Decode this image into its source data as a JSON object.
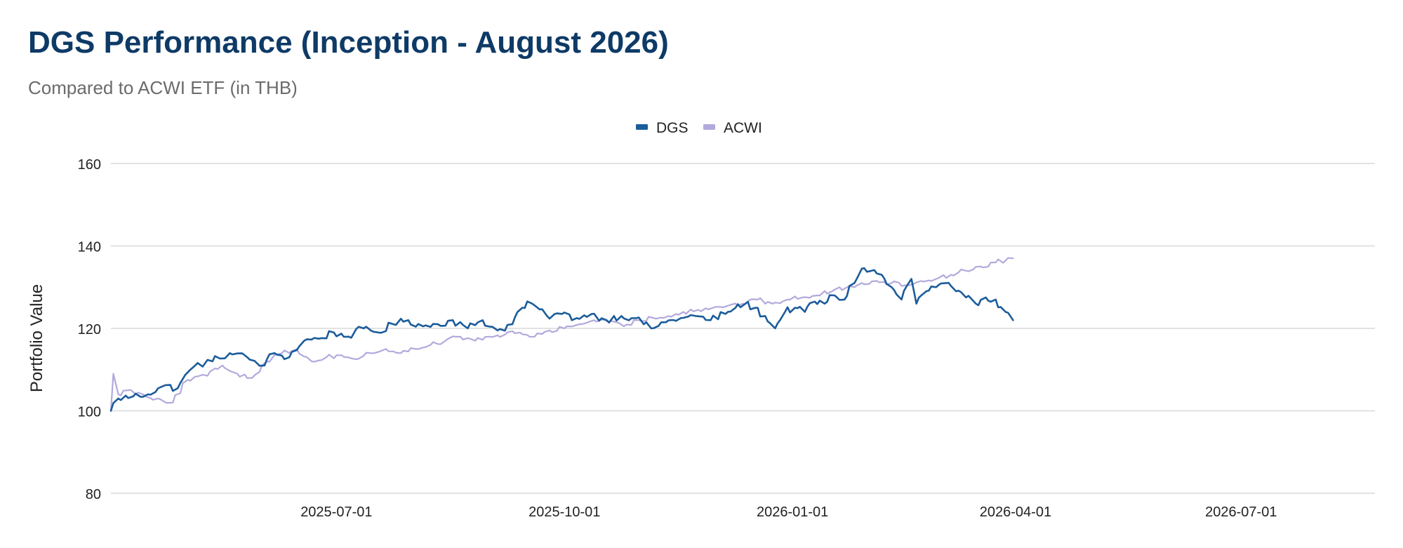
{
  "header": {
    "title": "DGS Performance (Inception - August 2026)",
    "subtitle": "Compared to ACWI ETF (in THB)"
  },
  "colors": {
    "title": "#0e3a66",
    "subtitle": "#6b6b6b",
    "grid": "#d9d9d9",
    "dgs": "#1b5c9b",
    "acwi": "#b3a9dc"
  },
  "chart_data": {
    "type": "line",
    "ylabel": "Portfolio Value",
    "xlabel": "",
    "ylim": [
      80,
      160
    ],
    "yticks": [
      80,
      100,
      120,
      140,
      160
    ],
    "xlim": [
      "2025-04-01",
      "2026-08-24"
    ],
    "xticks": [
      "2025-07-01",
      "2025-10-01",
      "2026-01-01",
      "2026-04-01",
      "2026-07-01"
    ],
    "grid": true,
    "legend_position": "top-center",
    "series": [
      {
        "name": "DGS",
        "color": "#1b5c9b",
        "points": [
          [
            "2025-04-01",
            100
          ],
          [
            "2025-04-04",
            103
          ],
          [
            "2025-04-10",
            103.5
          ],
          [
            "2025-04-16",
            104
          ],
          [
            "2025-04-22",
            106
          ],
          [
            "2025-04-28",
            105.5
          ],
          [
            "2025-05-05",
            111
          ],
          [
            "2025-05-12",
            112
          ],
          [
            "2025-05-19",
            114
          ],
          [
            "2025-05-26",
            113
          ],
          [
            "2025-06-02",
            111
          ],
          [
            "2025-06-06",
            114
          ],
          [
            "2025-06-12",
            113
          ],
          [
            "2025-06-18",
            117
          ],
          [
            "2025-06-24",
            117.5
          ],
          [
            "2025-06-30",
            119
          ],
          [
            "2025-07-06",
            118
          ],
          [
            "2025-07-12",
            120
          ],
          [
            "2025-07-18",
            119
          ],
          [
            "2025-07-24",
            121
          ],
          [
            "2025-07-30",
            122
          ],
          [
            "2025-08-05",
            120.5
          ],
          [
            "2025-08-11",
            121
          ],
          [
            "2025-08-17",
            122
          ],
          [
            "2025-08-23",
            120
          ],
          [
            "2025-08-29",
            122
          ],
          [
            "2025-09-04",
            119.5
          ],
          [
            "2025-09-10",
            121
          ],
          [
            "2025-09-14",
            125
          ],
          [
            "2025-09-18",
            126
          ],
          [
            "2025-09-24",
            123
          ],
          [
            "2025-09-30",
            123.5
          ],
          [
            "2025-10-06",
            122.5
          ],
          [
            "2025-10-12",
            123.5
          ],
          [
            "2025-10-18",
            122
          ],
          [
            "2025-10-24",
            123
          ],
          [
            "2025-10-30",
            122.5
          ],
          [
            "2025-11-05",
            120
          ],
          [
            "2025-11-11",
            121.5
          ],
          [
            "2025-11-17",
            122.5
          ],
          [
            "2025-11-23",
            123
          ],
          [
            "2025-11-29",
            122
          ],
          [
            "2025-12-05",
            123.5
          ],
          [
            "2025-12-09",
            125
          ],
          [
            "2025-12-13",
            126
          ],
          [
            "2025-12-17",
            125
          ],
          [
            "2025-12-21",
            123
          ],
          [
            "2025-12-25",
            120
          ],
          [
            "2025-12-29",
            124
          ],
          [
            "2026-01-02",
            125
          ],
          [
            "2026-01-06",
            124
          ],
          [
            "2026-01-10",
            126.5
          ],
          [
            "2026-01-14",
            126
          ],
          [
            "2026-01-18",
            128
          ],
          [
            "2026-01-22",
            127
          ],
          [
            "2026-01-26",
            131
          ],
          [
            "2026-01-29",
            134.5
          ],
          [
            "2026-02-02",
            134
          ],
          [
            "2026-02-06",
            133
          ],
          [
            "2026-02-10",
            130
          ],
          [
            "2026-02-14",
            127
          ],
          [
            "2026-02-18",
            132
          ],
          [
            "2026-02-20",
            126
          ],
          [
            "2026-02-24",
            129
          ],
          [
            "2026-02-28",
            130
          ],
          [
            "2026-03-04",
            131
          ],
          [
            "2026-03-08",
            129
          ],
          [
            "2026-03-12",
            127.5
          ],
          [
            "2026-03-16",
            126
          ],
          [
            "2026-03-20",
            127.5
          ],
          [
            "2026-03-24",
            127
          ],
          [
            "2026-03-28",
            124
          ],
          [
            "2026-03-31",
            122
          ]
        ]
      },
      {
        "name": "ACWI",
        "color": "#b3a9dc",
        "points": [
          [
            "2025-04-01",
            100
          ],
          [
            "2025-04-02",
            109
          ],
          [
            "2025-04-04",
            104
          ],
          [
            "2025-04-08",
            105
          ],
          [
            "2025-04-14",
            104
          ],
          [
            "2025-04-20",
            103
          ],
          [
            "2025-04-26",
            102
          ],
          [
            "2025-05-02",
            107.5
          ],
          [
            "2025-05-10",
            108.5
          ],
          [
            "2025-05-16",
            111
          ],
          [
            "2025-05-22",
            109
          ],
          [
            "2025-05-28",
            108
          ],
          [
            "2025-06-03",
            112
          ],
          [
            "2025-06-09",
            114
          ],
          [
            "2025-06-15",
            115
          ],
          [
            "2025-06-21",
            112
          ],
          [
            "2025-06-27",
            113
          ],
          [
            "2025-07-03",
            113.5
          ],
          [
            "2025-07-09",
            112.5
          ],
          [
            "2025-07-15",
            114
          ],
          [
            "2025-07-21",
            115
          ],
          [
            "2025-07-27",
            114
          ],
          [
            "2025-08-02",
            115
          ],
          [
            "2025-08-08",
            116
          ],
          [
            "2025-08-14",
            117
          ],
          [
            "2025-08-20",
            118
          ],
          [
            "2025-08-26",
            117
          ],
          [
            "2025-09-01",
            118
          ],
          [
            "2025-09-07",
            118.5
          ],
          [
            "2025-09-13",
            119
          ],
          [
            "2025-09-19",
            118
          ],
          [
            "2025-09-25",
            119.5
          ],
          [
            "2025-10-01",
            120
          ],
          [
            "2025-10-07",
            121
          ],
          [
            "2025-10-13",
            122
          ],
          [
            "2025-10-19",
            121.5
          ],
          [
            "2025-10-25",
            120.5
          ],
          [
            "2025-10-31",
            122
          ],
          [
            "2025-11-06",
            122.5
          ],
          [
            "2025-11-12",
            123
          ],
          [
            "2025-11-18",
            124
          ],
          [
            "2025-11-24",
            124.5
          ],
          [
            "2025-11-30",
            125
          ],
          [
            "2025-12-06",
            125.5
          ],
          [
            "2025-12-12",
            126
          ],
          [
            "2025-12-18",
            127
          ],
          [
            "2025-12-24",
            126
          ],
          [
            "2025-12-30",
            127
          ],
          [
            "2026-01-05",
            127.5
          ],
          [
            "2026-01-11",
            128
          ],
          [
            "2026-01-17",
            129
          ],
          [
            "2026-01-23",
            130
          ],
          [
            "2026-01-29",
            131
          ],
          [
            "2026-02-04",
            131.5
          ],
          [
            "2026-02-10",
            131
          ],
          [
            "2026-02-16",
            130.5
          ],
          [
            "2026-02-22",
            131.5
          ],
          [
            "2026-02-28",
            132
          ],
          [
            "2026-03-06",
            133
          ],
          [
            "2026-03-12",
            134
          ],
          [
            "2026-03-18",
            135
          ],
          [
            "2026-03-24",
            136
          ],
          [
            "2026-03-31",
            137
          ]
        ]
      }
    ]
  }
}
